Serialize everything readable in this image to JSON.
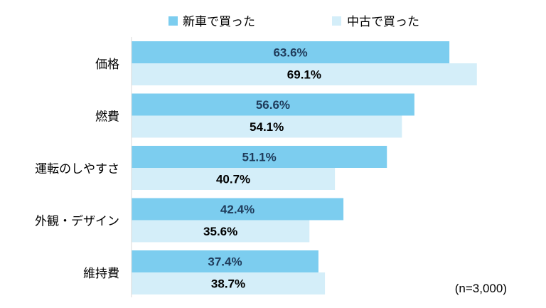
{
  "chart_data": {
    "type": "bar",
    "orientation": "horizontal",
    "categories": [
      "価格",
      "燃費",
      "運転のしやすさ",
      "外観・デザイン",
      "維持費"
    ],
    "series": [
      {
        "name": "新車で買った",
        "values": [
          63.6,
          56.6,
          51.1,
          42.4,
          37.4
        ],
        "labels": [
          "63.6%",
          "56.6%",
          "51.1%",
          "42.4%",
          "37.4%"
        ],
        "color": "#7ccdef",
        "label_color": "#1f3b5a"
      },
      {
        "name": "中古で買った",
        "values": [
          69.1,
          54.1,
          40.7,
          35.6,
          38.7
        ],
        "labels": [
          "69.1%",
          "54.1%",
          "40.7%",
          "35.6%",
          "38.7%"
        ],
        "color": "#d4eef9",
        "label_color": "#000000"
      }
    ],
    "xlim": [
      0,
      80
    ],
    "grid": false,
    "legend_position": "top",
    "note": "(n=3,000)"
  }
}
